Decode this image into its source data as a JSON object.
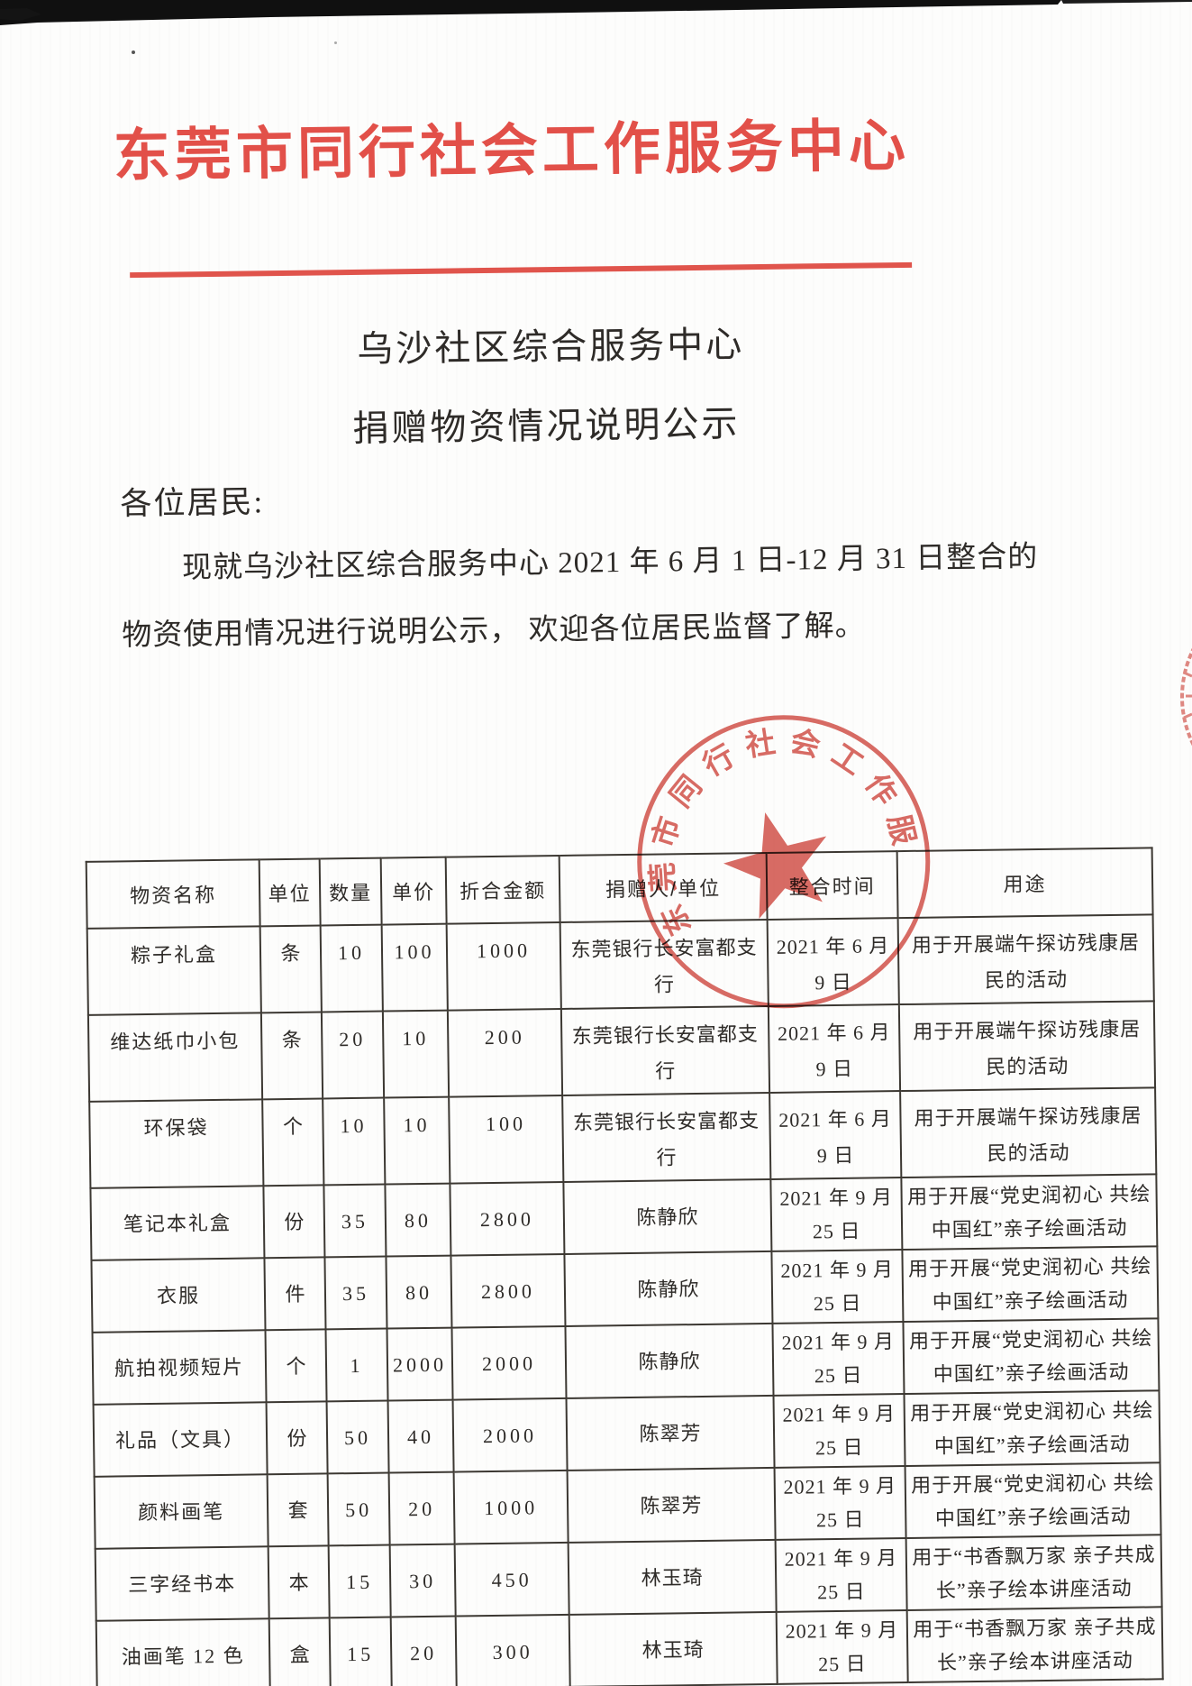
{
  "document": {
    "org_title": "东莞市同行社会工作服务中心",
    "subtitle_line1": "乌沙社区综合服务中心",
    "subtitle_line2": "捐赠物资情况说明公示",
    "salutation": "各位居民:",
    "body_line1": "现就乌沙社区综合服务中心 2021 年 6 月 1 日-12 月 31 日整合的",
    "body_line2": "物资使用情况进行说明公示， 欢迎各位居民监督了解。"
  },
  "stamp": {
    "ring_text": "东莞市同行社会工作服务中心"
  },
  "colors": {
    "title_red": "#e25049",
    "rule_red": "#e0544c",
    "stamp_red": "#cf4a42",
    "ink": "#2e2b28",
    "table_line": "#3c3832"
  },
  "table": {
    "headers": [
      "物资名称",
      "单位",
      "数量",
      "单价",
      "折合金额",
      "捐赠人/单位",
      "整合时间",
      "用途"
    ],
    "rows": [
      {
        "name": "粽子礼盒",
        "unit": "条",
        "qty": "10",
        "price": "100",
        "amount": "1000",
        "donor": "东莞银行长安富都支行",
        "date": "2021 年 6 月 9 日",
        "usage": "用于开展端午探访残康居民的活动"
      },
      {
        "name": "维达纸巾小包",
        "unit": "条",
        "qty": "20",
        "price": "10",
        "amount": "200",
        "donor": "东莞银行长安富都支行",
        "date": "2021 年 6 月 9 日",
        "usage": "用于开展端午探访残康居民的活动"
      },
      {
        "name": "环保袋",
        "unit": "个",
        "qty": "10",
        "price": "10",
        "amount": "100",
        "donor": "东莞银行长安富都支行",
        "date": "2021 年 6 月 9 日",
        "usage": "用于开展端午探访残康居民的活动"
      },
      {
        "name": "笔记本礼盒",
        "unit": "份",
        "qty": "35",
        "price": "80",
        "amount": "2800",
        "donor": "陈静欣",
        "date": "2021 年 9 月 25 日",
        "usage": "用于开展“党史润初心 共绘中国红”亲子绘画活动"
      },
      {
        "name": "衣服",
        "unit": "件",
        "qty": "35",
        "price": "80",
        "amount": "2800",
        "donor": "陈静欣",
        "date": "2021 年 9 月 25 日",
        "usage": "用于开展“党史润初心 共绘中国红”亲子绘画活动"
      },
      {
        "name": "航拍视频短片",
        "unit": "个",
        "qty": "1",
        "price": "2000",
        "amount": "2000",
        "donor": "陈静欣",
        "date": "2021 年 9 月 25 日",
        "usage": "用于开展“党史润初心 共绘中国红”亲子绘画活动"
      },
      {
        "name": "礼品（文具）",
        "unit": "份",
        "qty": "50",
        "price": "40",
        "amount": "2000",
        "donor": "陈翠芳",
        "date": "2021 年 9 月 25 日",
        "usage": "用于开展“党史润初心 共绘中国红”亲子绘画活动"
      },
      {
        "name": "颜料画笔",
        "unit": "套",
        "qty": "50",
        "price": "20",
        "amount": "1000",
        "donor": "陈翠芳",
        "date": "2021 年 9 月 25 日",
        "usage": "用于开展“党史润初心 共绘中国红”亲子绘画活动"
      },
      {
        "name": "三字经书本",
        "unit": "本",
        "qty": "15",
        "price": "30",
        "amount": "450",
        "donor": "林玉琦",
        "date": "2021 年 9 月 25 日",
        "usage": "用于“书香飘万家 亲子共成长”亲子绘本讲座活动"
      },
      {
        "name": "油画笔 12 色",
        "unit": "盒",
        "qty": "15",
        "price": "20",
        "amount": "300",
        "donor": "林玉琦",
        "date": "2021 年 9 月 25 日",
        "usage": "用于“书香飘万家 亲子共成长”亲子绘本讲座活动"
      }
    ]
  }
}
